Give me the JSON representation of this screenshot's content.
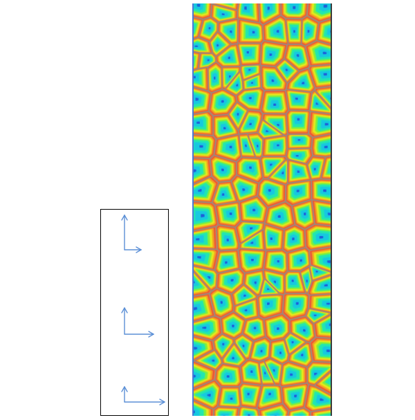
{
  "figure": {
    "background": "#ffffff",
    "axes_panel": {
      "border_color": "#000000",
      "arrow_color": "#5b8fd6",
      "arrow_icon": "axis-arrow-icon",
      "frames": [
        {
          "name": "frame-top"
        },
        {
          "name": "frame-middle"
        },
        {
          "name": "frame-bottom"
        }
      ]
    },
    "field_panel": {
      "description_icon": "cellular-pattern-icon",
      "colormap": [
        "#1e5fd8",
        "#19c8e0",
        "#22e6b0",
        "#7ef03c",
        "#e6e81a",
        "#f5a020",
        "#e8553a",
        "#9a8a7a"
      ],
      "cell_count": 150
    }
  }
}
